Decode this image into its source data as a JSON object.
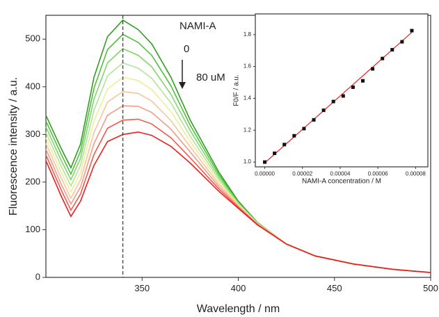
{
  "chart_data": [
    {
      "type": "line",
      "xlabel": "Wavelength / nm",
      "ylabel": "Fluorescence intensity / a.u.",
      "x": [
        300,
        308,
        313,
        318,
        325,
        332,
        340,
        348,
        355,
        365,
        375,
        390,
        400,
        410,
        425,
        440,
        460,
        480,
        500
      ],
      "xlim": [
        300,
        500
      ],
      "xticks": [
        350,
        400,
        450,
        500
      ],
      "ylim": [
        0,
        550
      ],
      "yticks": [
        0,
        100,
        200,
        300,
        400,
        500
      ],
      "vline": 340,
      "annotations": [
        "NAMI-A",
        "0",
        "80 uM"
      ],
      "series": [
        {
          "color": "#2e9e1f",
          "values": [
            340,
            270,
            230,
            280,
            420,
            505,
            540,
            520,
            490,
            420,
            330,
            220,
            160,
            115,
            70,
            45,
            28,
            17,
            10
          ]
        },
        {
          "color": "#4fbf3a",
          "values": [
            328,
            258,
            217,
            265,
            397,
            478,
            510,
            493,
            466,
            402,
            319,
            215,
            158,
            114,
            70,
            45,
            28,
            17,
            10
          ]
        },
        {
          "color": "#7fd66a",
          "values": [
            316,
            245,
            205,
            250,
            374,
            450,
            480,
            466,
            442,
            384,
            308,
            210,
            156,
            114,
            70,
            45,
            28,
            17,
            10
          ]
        },
        {
          "color": "#b2e59a",
          "values": [
            304,
            233,
            192,
            235,
            351,
            423,
            450,
            439,
            418,
            366,
            296,
            205,
            154,
            113,
            70,
            45,
            28,
            17,
            10
          ]
        },
        {
          "color": "#efec9c",
          "values": [
            293,
            220,
            179,
            220,
            328,
            395,
            420,
            413,
            394,
            348,
            285,
            200,
            153,
            113,
            70,
            45,
            28,
            17,
            10
          ]
        },
        {
          "color": "#f7c59a",
          "values": [
            281,
            208,
            166,
            205,
            304,
            368,
            390,
            386,
            370,
            329,
            274,
            195,
            151,
            112,
            70,
            45,
            28,
            17,
            10
          ]
        },
        {
          "color": "#f39b86",
          "values": [
            269,
            195,
            154,
            190,
            281,
            340,
            360,
            359,
            346,
            311,
            263,
            190,
            149,
            111,
            70,
            45,
            28,
            17,
            10
          ]
        },
        {
          "color": "#ef5a4a",
          "values": [
            257,
            183,
            141,
            175,
            258,
            313,
            330,
            332,
            322,
            293,
            251,
            185,
            147,
            111,
            70,
            45,
            28,
            17,
            10
          ]
        },
        {
          "color": "#e8201e",
          "values": [
            245,
            170,
            128,
            160,
            235,
            285,
            300,
            305,
            298,
            275,
            240,
            180,
            145,
            110,
            70,
            45,
            28,
            17,
            10
          ]
        }
      ]
    },
    {
      "type": "scatter",
      "xlabel": "NAMI-A concentration / M",
      "ylabel": "F0/F / a.u.",
      "x": [
        0,
        5.2e-06,
        1.04e-05,
        1.56e-05,
        2.08e-05,
        2.6e-05,
        3.12e-05,
        3.64e-05,
        4.16e-05,
        4.68e-05,
        5.2e-05,
        5.72e-05,
        6.24e-05,
        6.76e-05,
        7.28e-05,
        7.8e-05
      ],
      "values": [
        1.0,
        1.055,
        1.11,
        1.165,
        1.21,
        1.265,
        1.325,
        1.38,
        1.415,
        1.47,
        1.51,
        1.585,
        1.65,
        1.705,
        1.755,
        1.825
      ],
      "color": "#111111",
      "fit_x": [
        0,
        7.8e-05
      ],
      "fit_values": [
        0.995,
        1.815
      ],
      "fit_color": "#e8201e",
      "xlim": [
        -5e-06,
        8.65e-05
      ],
      "xticks": [
        {
          "value": 0,
          "label": "0.00000"
        },
        {
          "value": 2e-05,
          "label": "0.00002"
        },
        {
          "value": 4e-05,
          "label": "0.00004"
        },
        {
          "value": 6e-05,
          "label": "0.00006"
        },
        {
          "value": 8e-05,
          "label": "0.00008"
        }
      ],
      "ylim": [
        0.97,
        1.93
      ],
      "yticks": [
        {
          "value": 1.0,
          "label": "1.0"
        },
        1.2,
        1.4,
        1.6,
        1.8
      ]
    }
  ]
}
